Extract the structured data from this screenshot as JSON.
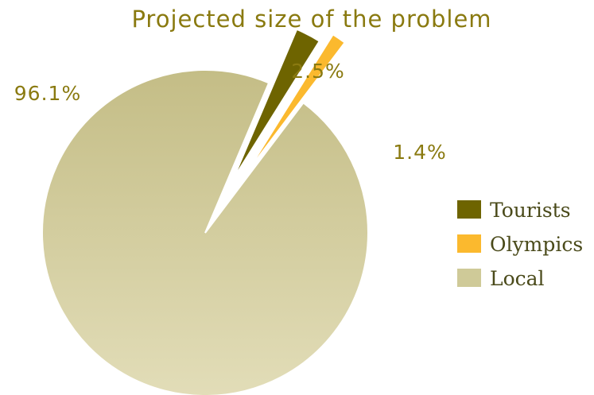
{
  "chart_data": {
    "type": "pie",
    "title": "Projected size of the problem",
    "slices": [
      {
        "name": "Tourists",
        "value": 2.5,
        "label": "2.5%",
        "color": "#6e6400"
      },
      {
        "name": "Olympics",
        "value": 1.4,
        "label": "1.4%",
        "color": "#fbb92e"
      },
      {
        "name": "Local",
        "value": 96.1,
        "label": "96.1%",
        "color": "#cfca98"
      }
    ],
    "legend_position": "right",
    "label_color": "#8a7a10"
  }
}
